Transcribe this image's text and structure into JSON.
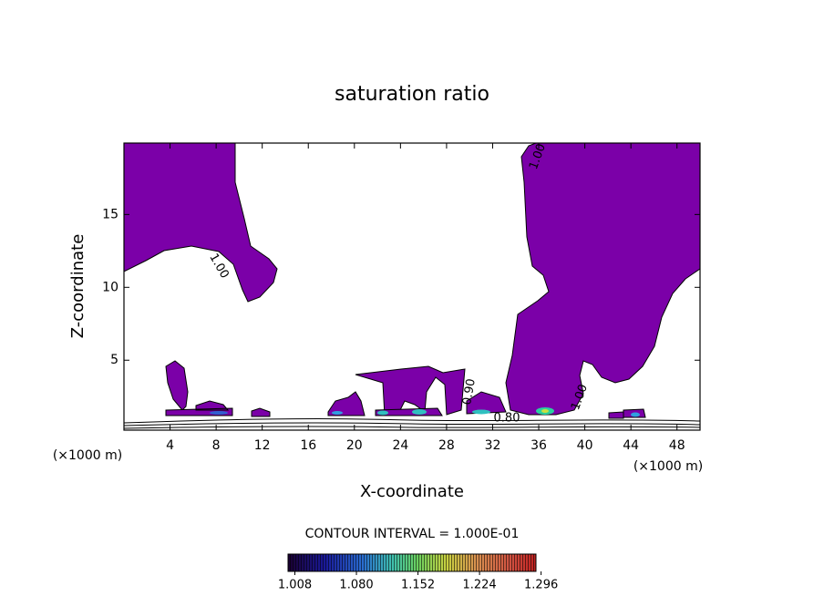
{
  "chart_data": {
    "type": "contour",
    "title": "saturation ratio",
    "x_label": "X-coordinate",
    "y_label": "Z-coordinate",
    "x_unit_label_left": "(×1000 m)",
    "x_unit_label_right": "(×1000 m)",
    "xlim": [
      0,
      50
    ],
    "ylim": [
      0.2,
      19.9
    ],
    "xticks": [
      4,
      8,
      12,
      16,
      20,
      24,
      28,
      32,
      36,
      40,
      44,
      48
    ],
    "yticks": [
      5,
      10,
      15
    ],
    "fill_color": "#7b00a8",
    "contour_labels": [
      "1.00",
      "1.00",
      "1.00",
      "0.90",
      "0.80"
    ],
    "contour_interval_text": "CONTOUR INTERVAL = 1.000E-01",
    "colorbar": {
      "lim": [
        1.0,
        1.29
      ],
      "ticks": [
        1.008,
        {
          "value": 1.08,
          "label": "1.080"
        },
        {
          "value": 1.152,
          "label": "1.152"
        },
        {
          "value": 1.224,
          "label": "1.224"
        },
        {
          "value": 1.296,
          "label": "1.296"
        }
      ]
    }
  }
}
